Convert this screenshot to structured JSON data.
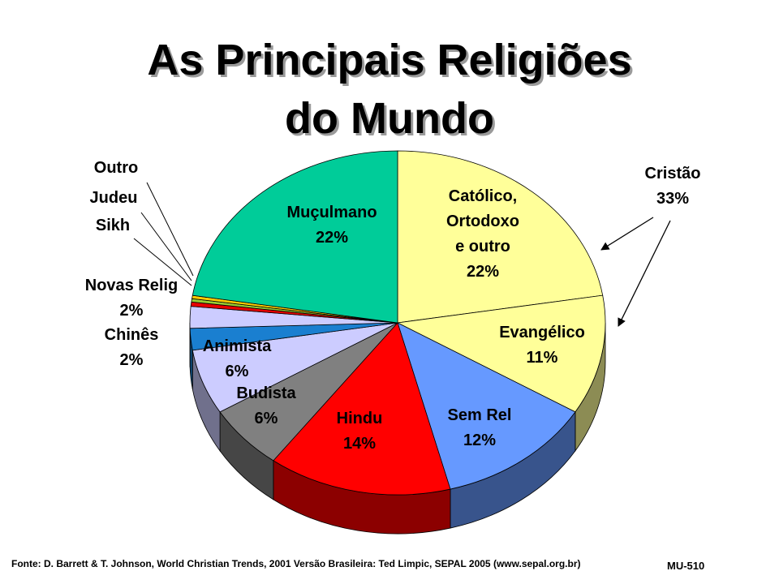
{
  "title_line1": "As Principais Religiões",
  "title_line2": "do Mundo",
  "chart_data": {
    "type": "pie",
    "title": "As Principais Religiões do Mundo",
    "slices": [
      {
        "name": "Católico, Ortodoxo e outro",
        "label_lines": [
          "Católico,",
          "Ortodoxo",
          "e outro"
        ],
        "value": 22,
        "value_label": "22%",
        "color": "#ffff99"
      },
      {
        "name": "Evangélico",
        "label_lines": [
          "Evangélico"
        ],
        "value": 11,
        "value_label": "11%",
        "color": "#ffff99"
      },
      {
        "name": "Sem Rel",
        "label_lines": [
          "Sem Rel"
        ],
        "value": 12,
        "value_label": "12%",
        "color": "#6699ff"
      },
      {
        "name": "Hindu",
        "label_lines": [
          "Hindu"
        ],
        "value": 14,
        "value_label": "14%",
        "color": "#ff0000"
      },
      {
        "name": "Budista",
        "label_lines": [
          "Budista"
        ],
        "value": 6,
        "value_label": "6%",
        "color": "#808080"
      },
      {
        "name": "Animista",
        "label_lines": [
          "Animista"
        ],
        "value": 6,
        "value_label": "6%",
        "color": "#ccccff"
      },
      {
        "name": "Chinês",
        "label_lines": [
          "Chinês"
        ],
        "value": 2,
        "value_label": "2%",
        "color": "#1a7fd0"
      },
      {
        "name": "Novas Relig",
        "label_lines": [
          "Novas Relig"
        ],
        "value": 2,
        "value_label": "2%",
        "color": "#ccccff"
      },
      {
        "name": "Sikh",
        "label_lines": [
          "Sikh"
        ],
        "value": 0.4,
        "value_label": "",
        "color": "#e60000"
      },
      {
        "name": "Judeu",
        "label_lines": [
          "Judeu"
        ],
        "value": 0.3,
        "value_label": "",
        "color": "#99cc33"
      },
      {
        "name": "Outro",
        "label_lines": [
          "Outro"
        ],
        "value": 0.3,
        "value_label": "",
        "color": "#ffcc00"
      },
      {
        "name": "Muçulmano",
        "label_lines": [
          "Muçulmano"
        ],
        "value": 22,
        "value_label": "22%",
        "color": "#00cc99"
      }
    ],
    "annotation": {
      "label": "Cristão",
      "value_label": "33%"
    }
  },
  "footer": "Fonte: D. Barrett & T. Johnson, World Christian Trends, 2001   Versão Brasileira: Ted Limpic, SEPAL 2005 (www.sepal.org.br)",
  "code": "MU-510"
}
